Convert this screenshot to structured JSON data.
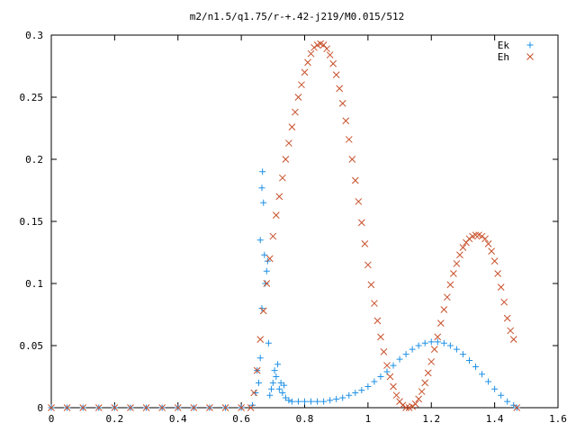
{
  "chart_data": {
    "type": "scatter",
    "title": "m2/n1.5/q1.75/r-+.42-j219/M0.015/512",
    "xlabel": "",
    "ylabel": "",
    "xlim": [
      0,
      1.6
    ],
    "ylim": [
      0,
      0.3
    ],
    "x_ticks": [
      "0",
      "0.2",
      "0.4",
      "0.6",
      "0.8",
      "1",
      "1.2",
      "1.4",
      "1.6"
    ],
    "y_ticks": [
      "0",
      "0.05",
      "0.1",
      "0.15",
      "0.2",
      "0.25",
      "0.3"
    ],
    "grid": false,
    "legend_position": "top-right",
    "series": [
      {
        "name": "Ek",
        "marker": "plus",
        "color": "#1e90e6",
        "points": [
          [
            0.0,
            0.0
          ],
          [
            0.05,
            0.0
          ],
          [
            0.1,
            0.0
          ],
          [
            0.15,
            0.0
          ],
          [
            0.2,
            0.0
          ],
          [
            0.25,
            0.0
          ],
          [
            0.3,
            0.0
          ],
          [
            0.35,
            0.0
          ],
          [
            0.4,
            0.0
          ],
          [
            0.45,
            0.0
          ],
          [
            0.5,
            0.0
          ],
          [
            0.55,
            0.0
          ],
          [
            0.6,
            0.0
          ],
          [
            0.635,
            0.002
          ],
          [
            0.645,
            0.012
          ],
          [
            0.65,
            0.03
          ],
          [
            0.655,
            0.02
          ],
          [
            0.66,
            0.04
          ],
          [
            0.665,
            0.08
          ],
          [
            0.66,
            0.135
          ],
          [
            0.665,
            0.177
          ],
          [
            0.667,
            0.19
          ],
          [
            0.67,
            0.165
          ],
          [
            0.673,
            0.123
          ],
          [
            0.676,
            0.1
          ],
          [
            0.68,
            0.11
          ],
          [
            0.683,
            0.118
          ],
          [
            0.686,
            0.052
          ],
          [
            0.69,
            0.01
          ],
          [
            0.695,
            0.015
          ],
          [
            0.7,
            0.02
          ],
          [
            0.705,
            0.03
          ],
          [
            0.71,
            0.025
          ],
          [
            0.715,
            0.035
          ],
          [
            0.72,
            0.015
          ],
          [
            0.725,
            0.02
          ],
          [
            0.73,
            0.012
          ],
          [
            0.735,
            0.018
          ],
          [
            0.74,
            0.008
          ],
          [
            0.75,
            0.006
          ],
          [
            0.76,
            0.005
          ],
          [
            0.78,
            0.005
          ],
          [
            0.8,
            0.005
          ],
          [
            0.82,
            0.005
          ],
          [
            0.84,
            0.005
          ],
          [
            0.86,
            0.005
          ],
          [
            0.88,
            0.006
          ],
          [
            0.9,
            0.007
          ],
          [
            0.92,
            0.008
          ],
          [
            0.94,
            0.01
          ],
          [
            0.96,
            0.012
          ],
          [
            0.98,
            0.014
          ],
          [
            1.0,
            0.017
          ],
          [
            1.02,
            0.021
          ],
          [
            1.04,
            0.025
          ],
          [
            1.06,
            0.029
          ],
          [
            1.08,
            0.034
          ],
          [
            1.1,
            0.039
          ],
          [
            1.12,
            0.043
          ],
          [
            1.14,
            0.047
          ],
          [
            1.16,
            0.05
          ],
          [
            1.18,
            0.052
          ],
          [
            1.2,
            0.053
          ],
          [
            1.22,
            0.053
          ],
          [
            1.24,
            0.052
          ],
          [
            1.26,
            0.05
          ],
          [
            1.28,
            0.047
          ],
          [
            1.3,
            0.043
          ],
          [
            1.32,
            0.038
          ],
          [
            1.34,
            0.033
          ],
          [
            1.36,
            0.027
          ],
          [
            1.38,
            0.021
          ],
          [
            1.4,
            0.015
          ],
          [
            1.42,
            0.01
          ],
          [
            1.44,
            0.005
          ],
          [
            1.46,
            0.002
          ],
          [
            1.47,
            0.0
          ]
        ]
      },
      {
        "name": "Eh",
        "marker": "cross",
        "color": "#c8502a",
        "points": [
          [
            0.0,
            0.0
          ],
          [
            0.05,
            0.0
          ],
          [
            0.1,
            0.0
          ],
          [
            0.15,
            0.0
          ],
          [
            0.2,
            0.0
          ],
          [
            0.25,
            0.0
          ],
          [
            0.3,
            0.0
          ],
          [
            0.35,
            0.0
          ],
          [
            0.4,
            0.0
          ],
          [
            0.45,
            0.0
          ],
          [
            0.5,
            0.0
          ],
          [
            0.55,
            0.0
          ],
          [
            0.6,
            0.0
          ],
          [
            0.63,
            0.0
          ],
          [
            0.64,
            0.012
          ],
          [
            0.65,
            0.03
          ],
          [
            0.66,
            0.055
          ],
          [
            0.67,
            0.078
          ],
          [
            0.68,
            0.1
          ],
          [
            0.69,
            0.12
          ],
          [
            0.7,
            0.138
          ],
          [
            0.71,
            0.155
          ],
          [
            0.72,
            0.17
          ],
          [
            0.73,
            0.185
          ],
          [
            0.74,
            0.2
          ],
          [
            0.75,
            0.213
          ],
          [
            0.76,
            0.226
          ],
          [
            0.77,
            0.238
          ],
          [
            0.78,
            0.25
          ],
          [
            0.79,
            0.26
          ],
          [
            0.8,
            0.27
          ],
          [
            0.81,
            0.278
          ],
          [
            0.82,
            0.285
          ],
          [
            0.83,
            0.29
          ],
          [
            0.84,
            0.292
          ],
          [
            0.85,
            0.293
          ],
          [
            0.86,
            0.292
          ],
          [
            0.87,
            0.289
          ],
          [
            0.88,
            0.284
          ],
          [
            0.89,
            0.277
          ],
          [
            0.9,
            0.268
          ],
          [
            0.91,
            0.257
          ],
          [
            0.92,
            0.245
          ],
          [
            0.93,
            0.231
          ],
          [
            0.94,
            0.216
          ],
          [
            0.95,
            0.2
          ],
          [
            0.96,
            0.183
          ],
          [
            0.97,
            0.166
          ],
          [
            0.98,
            0.149
          ],
          [
            0.99,
            0.132
          ],
          [
            1.0,
            0.115
          ],
          [
            1.01,
            0.099
          ],
          [
            1.02,
            0.084
          ],
          [
            1.03,
            0.07
          ],
          [
            1.04,
            0.057
          ],
          [
            1.05,
            0.045
          ],
          [
            1.06,
            0.034
          ],
          [
            1.07,
            0.025
          ],
          [
            1.08,
            0.017
          ],
          [
            1.09,
            0.01
          ],
          [
            1.1,
            0.005
          ],
          [
            1.11,
            0.002
          ],
          [
            1.12,
            0.0
          ],
          [
            1.13,
            0.0
          ],
          [
            1.14,
            0.001
          ],
          [
            1.15,
            0.003
          ],
          [
            1.16,
            0.007
          ],
          [
            1.17,
            0.013
          ],
          [
            1.18,
            0.02
          ],
          [
            1.19,
            0.028
          ],
          [
            1.2,
            0.037
          ],
          [
            1.21,
            0.047
          ],
          [
            1.22,
            0.057
          ],
          [
            1.23,
            0.068
          ],
          [
            1.24,
            0.079
          ],
          [
            1.25,
            0.089
          ],
          [
            1.26,
            0.099
          ],
          [
            1.27,
            0.108
          ],
          [
            1.28,
            0.116
          ],
          [
            1.29,
            0.123
          ],
          [
            1.3,
            0.129
          ],
          [
            1.31,
            0.133
          ],
          [
            1.32,
            0.136
          ],
          [
            1.33,
            0.138
          ],
          [
            1.34,
            0.139
          ],
          [
            1.35,
            0.139
          ],
          [
            1.36,
            0.138
          ],
          [
            1.37,
            0.136
          ],
          [
            1.38,
            0.132
          ],
          [
            1.39,
            0.126
          ],
          [
            1.4,
            0.118
          ],
          [
            1.41,
            0.108
          ],
          [
            1.42,
            0.097
          ],
          [
            1.43,
            0.085
          ],
          [
            1.44,
            0.072
          ],
          [
            1.45,
            0.062
          ],
          [
            1.46,
            0.055
          ],
          [
            1.47,
            0.0
          ]
        ]
      }
    ]
  }
}
